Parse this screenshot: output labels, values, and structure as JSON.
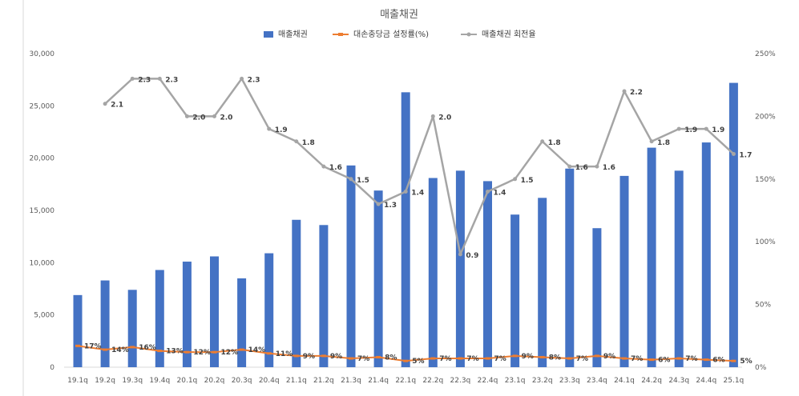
{
  "chart_data": {
    "type": "bar",
    "title": "매출채권",
    "categories": [
      "19.1q",
      "19.2q",
      "19.3q",
      "19.4q",
      "20.1q",
      "20.2q",
      "20.3q",
      "20.4q",
      "21.1q",
      "21.2q",
      "21.3q",
      "21.4q",
      "22.1q",
      "22.2q",
      "22.3q",
      "22.4q",
      "23.1q",
      "23.2q",
      "23.3q",
      "23.4q",
      "24.1q",
      "24.2q",
      "24.3q",
      "24.4q",
      "25.1q"
    ],
    "left_axis": {
      "ylim": [
        0,
        30000
      ],
      "ticks": [
        "0",
        "5,000",
        "10,000",
        "15,000",
        "20,000",
        "25,000",
        "30,000"
      ]
    },
    "right_axis": {
      "ylim": [
        0,
        250
      ],
      "ticks": [
        "0%",
        "50%",
        "100%",
        "150%",
        "200%",
        "250%"
      ]
    },
    "grid": false,
    "legend_position": "top",
    "series": [
      {
        "name": "매출채권",
        "kind": "bar",
        "axis": "left",
        "color": "#4472C4",
        "values": [
          6900,
          8300,
          7400,
          9300,
          10100,
          10600,
          8500,
          10900,
          14100,
          13600,
          19300,
          16900,
          26300,
          18100,
          18800,
          17800,
          14600,
          16200,
          19000,
          13300,
          18300,
          21000,
          18800,
          21500,
          27200
        ]
      },
      {
        "name": "대손충당금 설정률(%)",
        "kind": "line",
        "axis": "right",
        "color": "#ED7D31",
        "values": [
          17,
          14,
          16,
          13,
          12,
          12,
          14,
          11,
          9,
          9,
          7,
          8,
          5,
          7,
          7,
          7,
          9,
          8,
          7,
          9,
          7,
          6,
          7,
          6,
          5
        ],
        "labels": [
          "17%",
          "14%",
          "16%",
          "13%",
          "12%",
          "12%",
          "14%",
          "11%",
          "9%",
          "9%",
          "7%",
          "8%",
          "5%",
          "7%",
          "7%",
          "7%",
          "9%",
          "8%",
          "7%",
          "9%",
          "7%",
          "6%",
          "7%",
          "6%",
          "5%"
        ]
      },
      {
        "name": "매출채권 회전율",
        "kind": "line",
        "axis": "right",
        "color": "#A5A5A5",
        "values": [
          null,
          2.1,
          2.3,
          2.3,
          2.0,
          2.0,
          2.3,
          1.9,
          1.8,
          1.6,
          1.5,
          1.3,
          1.4,
          2.0,
          0.9,
          1.4,
          1.5,
          1.8,
          1.6,
          1.6,
          2.2,
          1.8,
          1.9,
          1.9,
          1.7
        ],
        "labels": [
          null,
          "2.1",
          "2.3",
          "2.3",
          "2.0",
          "2.0",
          "2.3",
          "1.9",
          "1.8",
          "1.6",
          "1.5",
          "1.3",
          "1.4",
          "2.0",
          "0.9",
          "1.4",
          "1.5",
          "1.8",
          "1.6",
          "1.6",
          "2.2",
          "1.8",
          "1.9",
          "1.9",
          "1.7"
        ]
      }
    ]
  }
}
